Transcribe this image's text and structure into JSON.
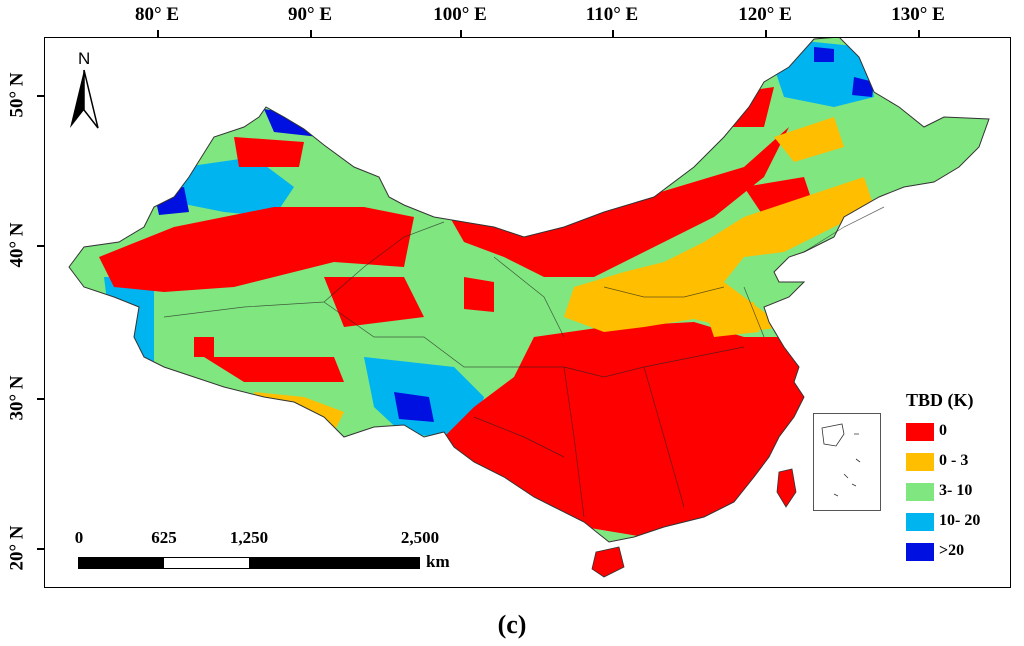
{
  "axes": {
    "longitude_labels": [
      "80° E",
      "90° E",
      "100° E",
      "110° E",
      "120° E",
      "130° E"
    ],
    "latitude_labels": [
      "50° N",
      "40° N",
      "30° N",
      "20° N"
    ]
  },
  "north_arrow": {
    "label": "N",
    "icon": "north-arrow-icon"
  },
  "legend": {
    "title": "TBD (K)",
    "items": [
      {
        "label": "0",
        "color": "#ff0000"
      },
      {
        "label": "0 - 3",
        "color": "#ffbf00"
      },
      {
        "label": "3- 10",
        "color": "#80e680"
      },
      {
        "label": "10- 20",
        "color": "#00b4f0"
      },
      {
        "label": ">20",
        "color": "#0010e0"
      }
    ]
  },
  "scale_bar": {
    "labels": [
      "0",
      "625",
      "1,250",
      "2,500"
    ],
    "unit": "km"
  },
  "caption": "(c)"
}
